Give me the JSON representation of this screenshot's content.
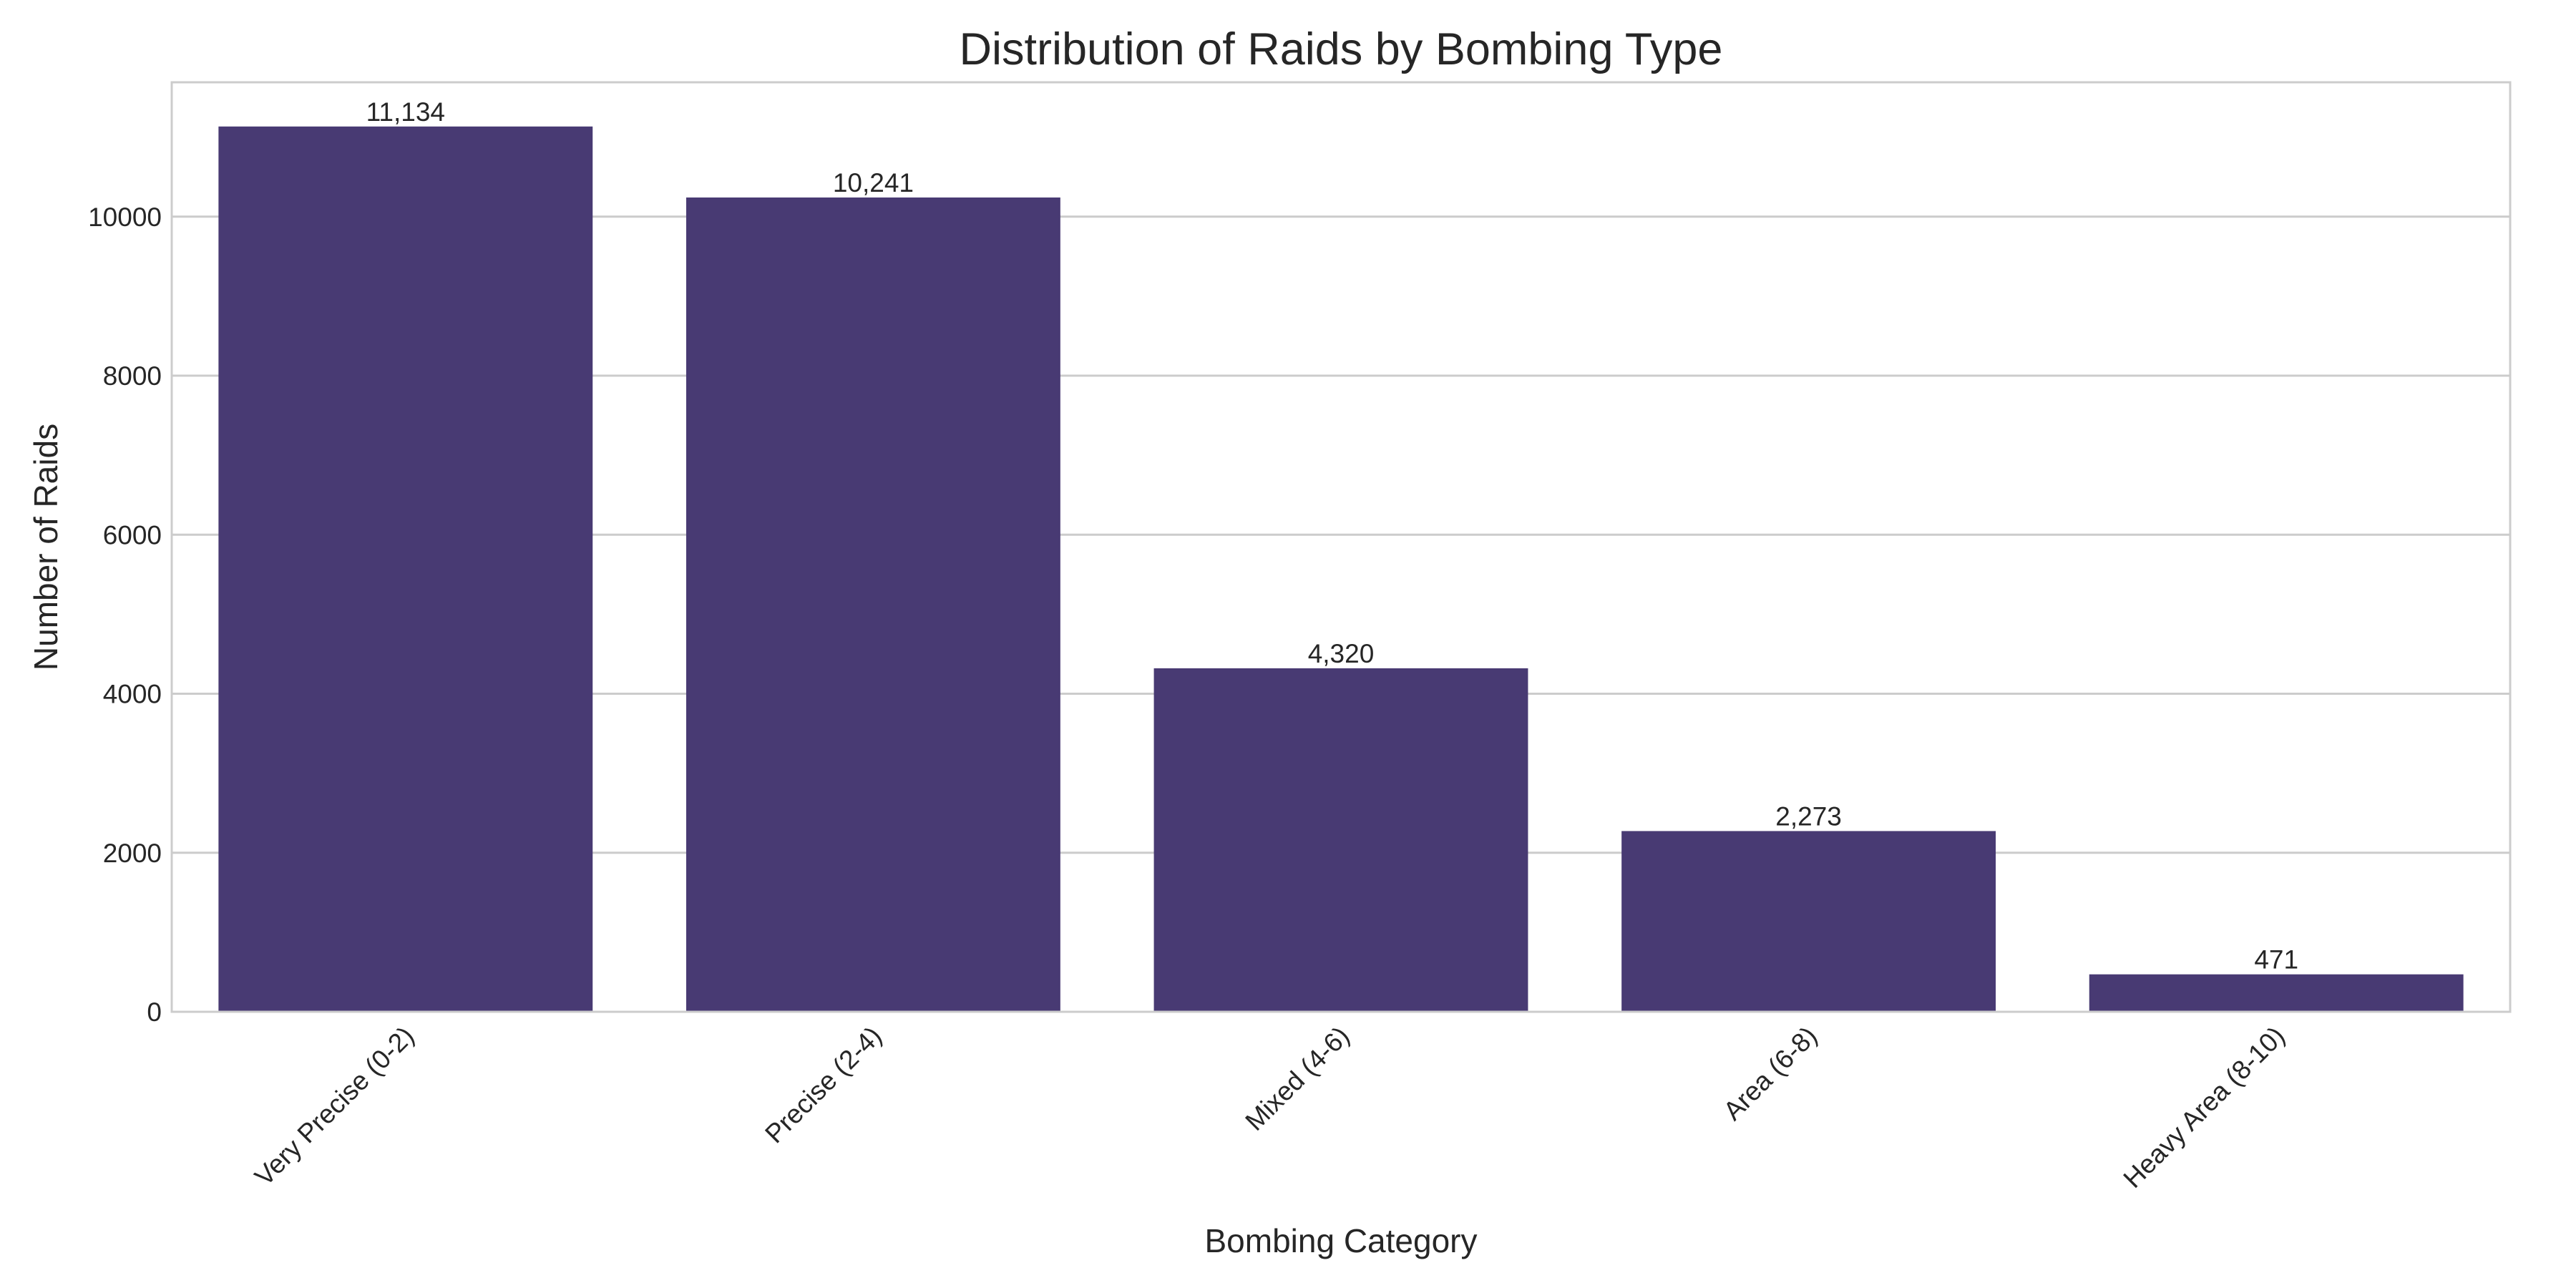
{
  "chart_data": {
    "type": "bar",
    "title": "Distribution of Raids by Bombing Type",
    "xlabel": "Bombing Category",
    "ylabel": "Number of Raids",
    "categories": [
      "Very Precise (0-2)",
      "Precise (2-4)",
      "Mixed (4-6)",
      "Area (6-8)",
      "Heavy Area (8-10)"
    ],
    "values": [
      11134,
      10241,
      4320,
      2273,
      471
    ],
    "value_labels": [
      "11,134",
      "10,241",
      "4,320",
      "2,273",
      "471"
    ],
    "ylim": [
      0,
      11690
    ],
    "yticks": [
      0,
      2000,
      4000,
      6000,
      8000,
      10000
    ],
    "ytick_labels": [
      "0",
      "2000",
      "4000",
      "6000",
      "8000",
      "10000"
    ],
    "grid": true,
    "bar_color": "#483a73",
    "grid_color": "#cccccc"
  }
}
